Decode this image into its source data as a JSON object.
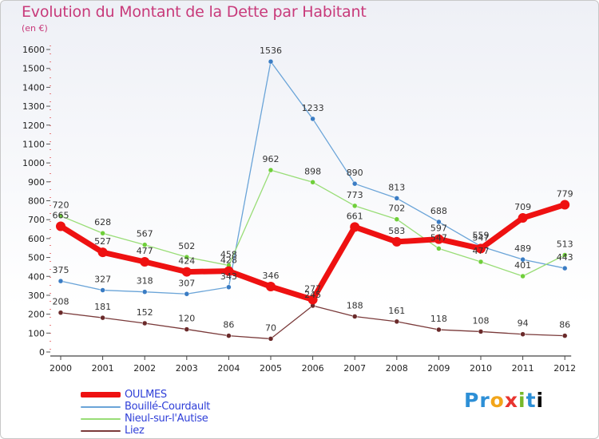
{
  "title": "Evolution du Montant de la Dette par Habitant",
  "subtitle": "(en €)",
  "logo": [
    "P",
    "r",
    "o",
    "x",
    "i",
    "t",
    "i"
  ],
  "chart_data": {
    "type": "line",
    "title": "Evolution du Montant de la Dette par Habitant",
    "ylabel": "(en €)",
    "ylim": [
      0,
      1600
    ],
    "ytick_step": 100,
    "grid": false,
    "legend_position": "bottom-left",
    "x": [
      "2000",
      "2001",
      "2002",
      "2003",
      "2004",
      "2005",
      "2006",
      "2007",
      "2008",
      "2009",
      "2010",
      "2011",
      "2012"
    ],
    "series": [
      {
        "name": "OULMES",
        "color": "#ee1111",
        "width": 7,
        "values": [
          665,
          527,
          477,
          424,
          428,
          346,
          277,
          661,
          583,
          597,
          547,
          709,
          779
        ],
        "labels": [
          "665",
          "527",
          "477",
          "424",
          "428",
          "346",
          "277",
          "661",
          "583",
          "597",
          "547",
          "709",
          "779"
        ]
      },
      {
        "name": "Bouillé-Courdault",
        "color": "#6aa4d8",
        "width": 1.3,
        "values": [
          375,
          327,
          318,
          307,
          343,
          1536,
          1233,
          890,
          813,
          688,
          559,
          489,
          443
        ],
        "labels": [
          "375",
          "327",
          "318",
          "307",
          "343",
          "1536",
          "1233",
          "890",
          "813",
          "688",
          "559",
          "489",
          "443"
        ]
      },
      {
        "name": "Nieul-sur-l'Autise",
        "color": "#99dd77",
        "width": 1.3,
        "values": [
          720,
          628,
          567,
          502,
          458,
          962,
          898,
          773,
          702,
          547,
          477,
          401,
          513
        ],
        "labels": [
          "720",
          "628",
          "567",
          "502",
          "458",
          "962",
          "898",
          "773",
          "702",
          "547",
          "477",
          "401",
          "513"
        ]
      },
      {
        "name": "Liez",
        "color": "#7a3a3a",
        "width": 1.3,
        "values": [
          208,
          181,
          152,
          120,
          86,
          70,
          245,
          188,
          161,
          118,
          108,
          94,
          86
        ],
        "labels": [
          "208",
          "181",
          "152",
          "120",
          "86",
          "70",
          "245",
          "188",
          "161",
          "118",
          "108",
          "94",
          "86"
        ]
      }
    ]
  }
}
